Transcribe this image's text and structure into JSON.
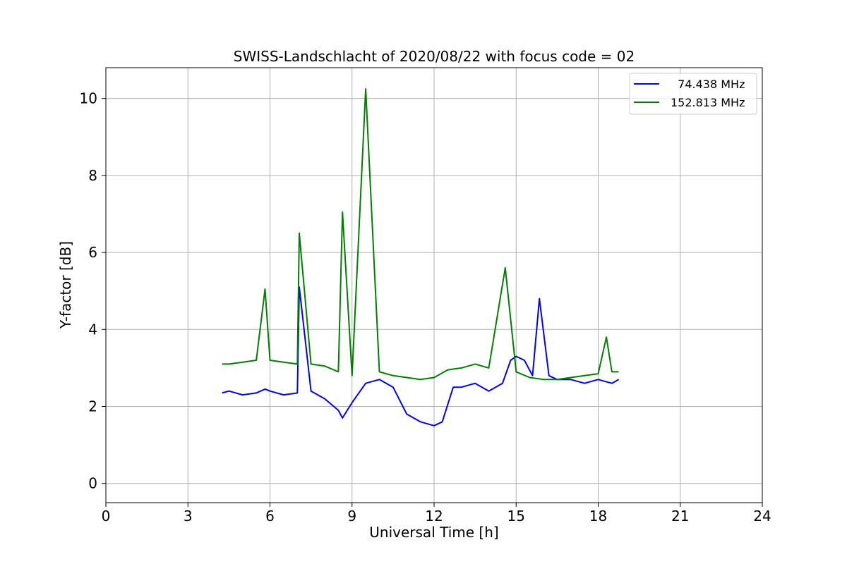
{
  "chart_data": {
    "type": "line",
    "title": "SWISS-Landschlacht of 2020/08/22 with focus code = 02",
    "xlabel": "Universal Time [h]",
    "ylabel": "Y-factor [dB]",
    "xlim": [
      0,
      24
    ],
    "ylim": [
      -0.5,
      10.8
    ],
    "xticks": [
      0,
      3,
      6,
      9,
      12,
      15,
      18,
      21,
      24
    ],
    "yticks": [
      0,
      2,
      4,
      6,
      8,
      10
    ],
    "grid": true,
    "legend_position": "top-right",
    "series": [
      {
        "name": "  74.438 MHz",
        "color": "#0000ff",
        "x": [
          4.25,
          4.5,
          5.0,
          5.5,
          5.82,
          6.0,
          6.5,
          7.0,
          7.07,
          7.5,
          8.0,
          8.5,
          8.65,
          9.0,
          9.5,
          10.0,
          10.5,
          11.0,
          11.5,
          12.0,
          12.3,
          12.7,
          13.0,
          13.5,
          14.0,
          14.5,
          14.8,
          15.0,
          15.3,
          15.6,
          15.85,
          16.2,
          16.5,
          17.0,
          17.5,
          18.0,
          18.5,
          18.75
        ],
        "y": [
          2.35,
          2.4,
          2.3,
          2.35,
          2.45,
          2.4,
          2.3,
          2.35,
          5.1,
          2.4,
          2.2,
          1.9,
          1.7,
          2.1,
          2.6,
          2.7,
          2.5,
          1.8,
          1.6,
          1.5,
          1.6,
          2.5,
          2.5,
          2.6,
          2.4,
          2.6,
          3.2,
          3.3,
          3.2,
          2.8,
          4.8,
          2.8,
          2.7,
          2.7,
          2.6,
          2.7,
          2.6,
          2.7
        ]
      },
      {
        "name": "152.813 MHz",
        "color": "#008000",
        "x": [
          4.25,
          4.5,
          5.0,
          5.5,
          5.82,
          6.0,
          6.5,
          7.0,
          7.07,
          7.5,
          8.0,
          8.5,
          8.65,
          9.0,
          9.5,
          10.0,
          10.5,
          11.0,
          11.5,
          12.0,
          12.5,
          13.0,
          13.5,
          14.0,
          14.6,
          15.0,
          15.5,
          16.0,
          16.5,
          17.0,
          17.5,
          18.0,
          18.3,
          18.5,
          18.75
        ],
        "y": [
          3.1,
          3.1,
          3.15,
          3.2,
          5.05,
          3.2,
          3.15,
          3.1,
          6.5,
          3.1,
          3.05,
          2.9,
          7.05,
          2.8,
          10.25,
          2.9,
          2.8,
          2.75,
          2.7,
          2.75,
          2.95,
          3.0,
          3.1,
          3.0,
          5.6,
          2.9,
          2.75,
          2.7,
          2.7,
          2.75,
          2.8,
          2.85,
          3.8,
          2.9,
          2.9
        ]
      }
    ]
  }
}
